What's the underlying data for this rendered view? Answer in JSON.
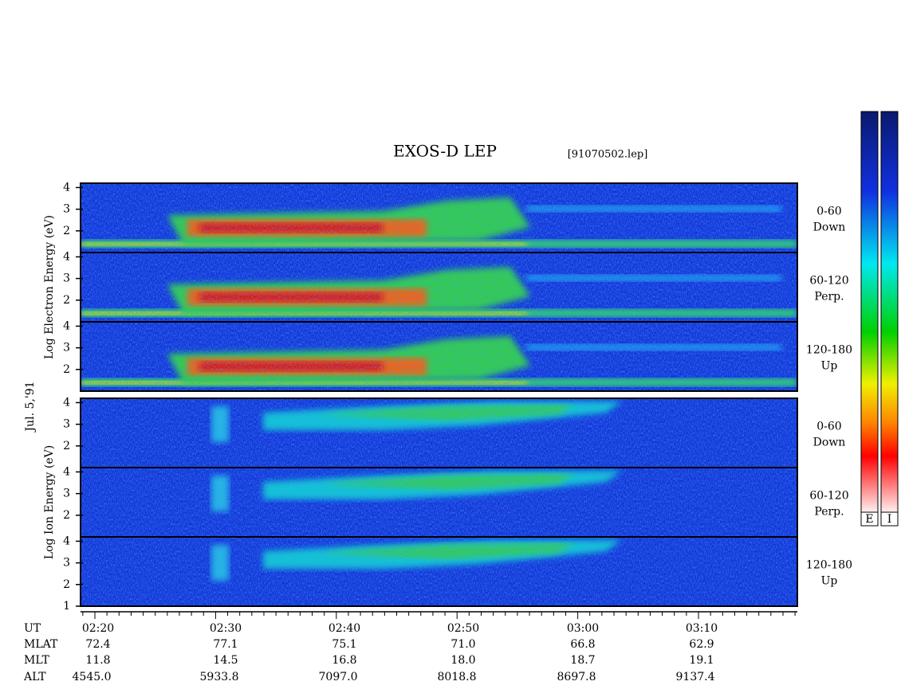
{
  "header": {
    "title": "EXOS-D LEP",
    "file": "[91070502.lep]"
  },
  "date": "Jul. 5,'91",
  "groups": [
    {
      "label": "Log Electron Energy (eV)",
      "panels": [
        {
          "channel": "0-60",
          "direction": "Down",
          "yticks": [
            2,
            3,
            4
          ]
        },
        {
          "channel": "60-120",
          "direction": "Perp.",
          "yticks": [
            2,
            3,
            4
          ]
        },
        {
          "channel": "120-180",
          "direction": "Up",
          "yticks": [
            2,
            3,
            4
          ]
        }
      ]
    },
    {
      "label": "Log Ion Energy (eV)",
      "panels": [
        {
          "channel": "0-60",
          "direction": "Down",
          "yticks": [
            2,
            3,
            4
          ]
        },
        {
          "channel": "60-120",
          "direction": "Perp.",
          "yticks": [
            2,
            3,
            4
          ]
        },
        {
          "channel": "120-180",
          "direction": "Up",
          "yticks": [
            1,
            2,
            3,
            4
          ]
        }
      ]
    }
  ],
  "ylim": [
    1,
    4.2
  ],
  "colorbars": [
    "E",
    "I"
  ],
  "time_table": {
    "rows": [
      {
        "label": "UT",
        "values": [
          "02:20",
          "02:30",
          "02:40",
          "02:50",
          "03:00",
          "03:10"
        ]
      },
      {
        "label": "MLAT",
        "values": [
          "72.4",
          "77.1",
          "75.1",
          "71.0",
          "66.8",
          "62.9"
        ]
      },
      {
        "label": "MLT",
        "values": [
          "11.8",
          "14.5",
          "16.8",
          "18.0",
          "18.7",
          "19.1"
        ]
      },
      {
        "label": "ALT",
        "values": [
          "4545.0",
          "5933.8",
          "7097.0",
          "8018.8",
          "8697.8",
          "9137.4"
        ]
      }
    ]
  }
}
